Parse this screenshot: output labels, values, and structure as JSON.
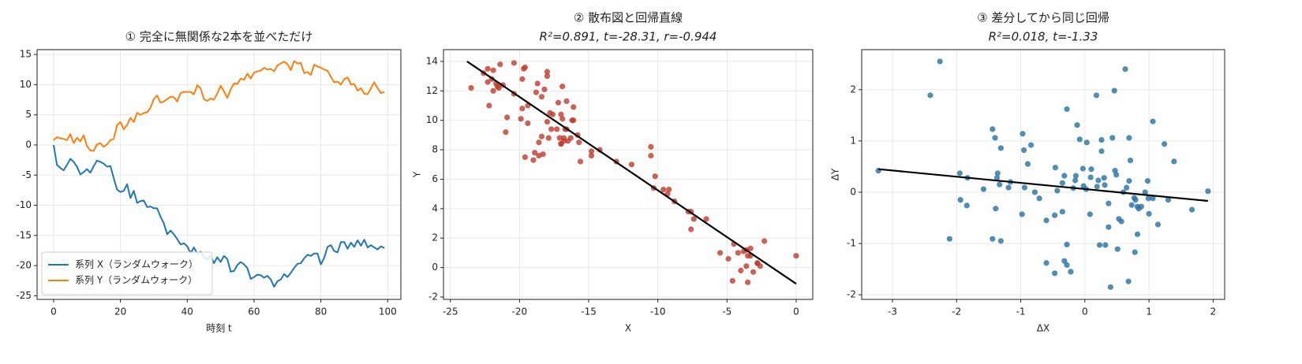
{
  "chart_data": [
    {
      "type": "line",
      "title": "① 完全に無関係な2本を並べただけ",
      "xlabel": "時刻 t",
      "x": [
        0,
        1,
        2,
        3,
        4,
        5,
        6,
        7,
        8,
        9,
        10,
        11,
        12,
        13,
        14,
        15,
        16,
        17,
        18,
        19,
        20,
        21,
        22,
        23,
        24,
        25,
        26,
        27,
        28,
        29,
        30,
        31,
        32,
        33,
        34,
        35,
        36,
        37,
        38,
        39,
        40,
        41,
        42,
        43,
        44,
        45,
        46,
        47,
        48,
        49,
        50,
        51,
        52,
        53,
        54,
        55,
        56,
        57,
        58,
        59,
        60,
        61,
        62,
        63,
        64,
        65,
        66,
        67,
        68,
        69,
        70,
        71,
        72,
        73,
        74,
        75,
        76,
        77,
        78,
        79,
        80,
        81,
        82,
        83,
        84,
        85,
        86,
        87,
        88,
        89,
        90,
        91,
        92,
        93,
        94,
        95,
        96,
        97,
        98,
        99
      ],
      "series": [
        {
          "name": "系列 X（ランダムウォーク）",
          "color": "#1f77b4",
          "values": [
            0,
            -3.3,
            -3.8,
            -4.2,
            -3.3,
            -2.3,
            -2.8,
            -3.6,
            -4.9,
            -4.5,
            -4.0,
            -4.6,
            -3.5,
            -2.6,
            -2.8,
            -3.1,
            -3.6,
            -3.5,
            -5.5,
            -7.4,
            -7.8,
            -7.6,
            -6.5,
            -8.8,
            -7.6,
            -9.6,
            -9.3,
            -9.2,
            -10.3,
            -10.2,
            -10.5,
            -10.5,
            -11.9,
            -13.0,
            -14.8,
            -14.2,
            -14.8,
            -15.6,
            -16.5,
            -16.3,
            -16.8,
            -17.9,
            -17.0,
            -18.0,
            -17.7,
            -18.6,
            -19.0,
            -18.3,
            -19.6,
            -18.6,
            -19.4,
            -18.4,
            -18.9,
            -21.0,
            -20.9,
            -19.9,
            -19.4,
            -19.8,
            -20.4,
            -22.2,
            -21.9,
            -21.5,
            -21.6,
            -22.0,
            -21.7,
            -22.3,
            -23.5,
            -22.6,
            -22.3,
            -21.4,
            -21.9,
            -21.2,
            -20.4,
            -19.7,
            -19.6,
            -18.8,
            -18.2,
            -18.4,
            -18.0,
            -18.0,
            -19.8,
            -18.7,
            -16.9,
            -16.6,
            -17.6,
            -17.8,
            -16.1,
            -16.1,
            -17.2,
            -16.2,
            -16.9,
            -15.8,
            -16.7,
            -15.7,
            -17.0,
            -16.6,
            -17.0,
            -17.3,
            -16.8,
            -17.1
          ]
        },
        {
          "name": "系列 Y（ランダムウォーク）",
          "color": "#ff7f0e",
          "values": [
            0.8,
            1.3,
            1.1,
            1.0,
            0.8,
            1.8,
            0.3,
            1.2,
            0.6,
            1.6,
            -0.2,
            -0.9,
            -1.0,
            0.1,
            0.3,
            -0.3,
            0.1,
            0.8,
            1.0,
            3.3,
            3.8,
            2.6,
            3.3,
            4.5,
            3.8,
            5.3,
            5.0,
            5.3,
            5.4,
            6.2,
            7.6,
            8.2,
            7.0,
            7.2,
            7.6,
            8.0,
            7.9,
            7.2,
            8.6,
            8.8,
            8.8,
            8.8,
            8.4,
            9.9,
            9.4,
            7.6,
            7.3,
            7.7,
            7.5,
            8.5,
            9.8,
            8.9,
            7.8,
            9.2,
            10.2,
            10.1,
            11.0,
            10.8,
            11.8,
            11.0,
            12.0,
            12.2,
            12.3,
            12.8,
            12.5,
            12.6,
            12.2,
            13.2,
            13.5,
            13.8,
            13.4,
            12.4,
            13.9,
            13.5,
            13.6,
            11.9,
            12.1,
            11.6,
            13.3,
            13.0,
            12.8,
            12.5,
            12.3,
            11.3,
            10.4,
            10.5,
            10.0,
            10.9,
            11.2,
            10.0,
            10.1,
            9.0,
            9.4,
            8.5,
            8.4,
            9.4,
            10.4,
            9.4,
            8.6,
            8.8
          ]
        }
      ],
      "xlim": [
        -4.95,
        103.95
      ],
      "ylim": [
        -25.6,
        15.8
      ],
      "xticks": [
        0,
        20,
        40,
        60,
        80,
        100
      ],
      "yticks": [
        -25,
        -20,
        -15,
        -10,
        -5,
        0,
        5,
        10,
        15
      ],
      "grid": true,
      "legend": "lower left"
    },
    {
      "type": "scatter",
      "title": "② 散布図と回帰直線",
      "subtitle": "R²=0.891, t=-28.31, r=-0.944",
      "xlabel": "X",
      "ylabel": "Y",
      "color": "#c0392b",
      "x": [
        0,
        -3.3,
        -3.8,
        -4.2,
        -3.3,
        -2.3,
        -2.8,
        -3.6,
        -4.9,
        -4.5,
        -4.0,
        -4.6,
        -3.5,
        -2.6,
        -2.8,
        -3.1,
        -3.6,
        -3.5,
        -5.5,
        -7.4,
        -7.8,
        -7.6,
        -6.5,
        -8.8,
        -7.6,
        -9.6,
        -9.3,
        -9.2,
        -10.3,
        -10.2,
        -10.5,
        -10.5,
        -11.9,
        -13.0,
        -14.8,
        -14.2,
        -14.8,
        -15.6,
        -16.5,
        -16.3,
        -16.8,
        -17.9,
        -17.0,
        -18.0,
        -17.7,
        -18.6,
        -19.0,
        -18.3,
        -19.6,
        -18.6,
        -19.4,
        -18.4,
        -18.9,
        -21.0,
        -20.9,
        -19.9,
        -19.4,
        -19.8,
        -20.4,
        -22.2,
        -21.9,
        -21.5,
        -21.6,
        -22.0,
        -21.7,
        -22.3,
        -23.5,
        -22.6,
        -22.3,
        -21.4,
        -21.9,
        -21.2,
        -20.4,
        -19.7,
        -19.6,
        -18.8,
        -18.2,
        -18.4,
        -18.0,
        -18.0,
        -19.8,
        -18.7,
        -16.9,
        -16.6,
        -17.6,
        -17.8,
        -16.1,
        -16.1,
        -17.2,
        -16.2,
        -16.9,
        -15.8,
        -16.7,
        -15.7,
        -17.0,
        -16.6,
        -17.0,
        -17.3,
        -16.8,
        -17.1
      ],
      "values": [
        0.8,
        1.3,
        1.1,
        1.0,
        0.8,
        1.8,
        0.3,
        1.2,
        0.6,
        1.6,
        -0.2,
        -0.9,
        -1.0,
        0.1,
        0.3,
        -0.3,
        0.1,
        0.8,
        1.0,
        3.3,
        3.8,
        2.6,
        3.3,
        4.5,
        3.8,
        5.3,
        5.0,
        5.3,
        5.4,
        6.2,
        7.6,
        8.2,
        7.0,
        7.2,
        7.6,
        8.0,
        7.9,
        7.2,
        8.6,
        8.8,
        8.8,
        8.8,
        8.4,
        9.9,
        9.4,
        7.6,
        7.3,
        7.7,
        7.5,
        8.5,
        9.8,
        8.9,
        7.8,
        9.2,
        10.2,
        10.1,
        11.0,
        10.8,
        11.8,
        11.0,
        12.0,
        12.2,
        12.3,
        12.8,
        12.5,
        12.6,
        12.2,
        13.2,
        13.5,
        13.8,
        13.4,
        12.4,
        13.9,
        13.5,
        13.6,
        11.9,
        12.1,
        11.6,
        13.3,
        13.0,
        12.8,
        12.5,
        12.3,
        11.3,
        10.4,
        10.5,
        10.0,
        10.9,
        11.2,
        10.0,
        10.1,
        9.0,
        9.4,
        8.5,
        8.4,
        9.4,
        10.4,
        9.4,
        8.6,
        8.8
      ],
      "fit": {
        "x": [
          -23.8,
          0
        ],
        "values": [
          14.0,
          -1.1
        ],
        "color": "#000000"
      },
      "xlim": [
        -25.5,
        1.2
      ],
      "ylim": [
        -2.16,
        14.8
      ],
      "xticks": [
        -25,
        -20,
        -15,
        -10,
        -5,
        0
      ],
      "yticks": [
        -2,
        0,
        2,
        4,
        6,
        8,
        10,
        12,
        14
      ],
      "grid": true
    },
    {
      "type": "scatter",
      "title": "③ 差分してから同じ回帰",
      "subtitle": "R²=0.018, t=-1.33",
      "xlabel": "ΔX",
      "ylabel": "ΔY",
      "color": "#2471a3",
      "x": [
        -3.22,
        -2.26,
        -2.41,
        -2.11,
        -1.95,
        -1.94,
        -1.84,
        -1.83,
        -1.58,
        -1.44,
        -1.4,
        -1.44,
        -1.39,
        -1.37,
        -1.36,
        -1.33,
        -1.31,
        -1.31,
        -1.19,
        -1.16,
        -0.97,
        -0.95,
        -0.94,
        -0.98,
        -0.89,
        -0.84,
        -0.78,
        -0.71,
        -0.6,
        -0.47,
        -0.46,
        -0.43,
        -0.6,
        -0.47,
        -0.35,
        -0.32,
        -0.35,
        -0.28,
        -0.28,
        -0.28,
        -0.32,
        -0.22,
        -0.18,
        -0.14,
        -0.15,
        -0.12,
        -0.08,
        -0.03,
        -0.02,
        0.02,
        0.03,
        0.08,
        0.09,
        0.1,
        0.19,
        0.21,
        0.18,
        0.23,
        0.26,
        0.26,
        0.3,
        0.31,
        0.32,
        0.37,
        0.37,
        0.4,
        0.43,
        0.46,
        0.47,
        0.49,
        0.51,
        0.53,
        0.57,
        0.6,
        0.63,
        0.65,
        0.68,
        0.69,
        0.71,
        0.69,
        0.73,
        0.77,
        0.78,
        0.79,
        0.82,
        0.84,
        0.82,
        0.88,
        0.94,
        0.98,
        0.99,
        1.06,
        1.06,
        1.0,
        1.14,
        1.24,
        1.3,
        1.39,
        1.67,
        1.92
      ],
      "values": [
        0.42,
        2.55,
        1.89,
        -0.91,
        0.37,
        -0.15,
        -0.26,
        0.28,
        0.06,
        1.23,
        1.06,
        -0.91,
        -0.32,
        0.28,
        0.37,
        0.15,
        0.86,
        -0.95,
        0.09,
        0.2,
        1.14,
        0.82,
        0.09,
        -0.43,
        0.55,
        0.92,
        0.0,
        -0.12,
        -0.55,
        -0.45,
        0.48,
        0.03,
        -1.38,
        -1.58,
        0.18,
        0.32,
        -0.38,
        1.62,
        -1.02,
        -1.42,
        -1.34,
        -1.55,
        0.08,
        0.32,
        0.23,
        1.31,
        1.03,
        0.46,
        0.12,
        0.06,
        0.97,
        -0.43,
        0.29,
        0.45,
        0.11,
        0.23,
        1.89,
        -1.03,
        1.02,
        0.8,
        0.28,
        0.14,
        -1.03,
        -0.22,
        -0.68,
        -1.85,
        1.06,
        1.98,
        0.42,
        0.34,
        -1.11,
        -0.52,
        -0.57,
        0.0,
        2.4,
        0.09,
        -1.74,
        1.06,
        0.62,
        0.22,
        -0.25,
        -0.11,
        -1.17,
        -0.15,
        -0.82,
        -0.32,
        -0.28,
        -0.28,
        0.0,
        0.22,
        -0.12,
        -0.12,
        1.38,
        -0.42,
        -0.63,
        0.94,
        -0.15,
        0.6,
        -0.34,
        0.02
      ],
      "fit": {
        "x": [
          -3.22,
          1.92
        ],
        "values": [
          0.45,
          -0.17
        ],
        "color": "#000000"
      },
      "xlim": [
        -3.48,
        2.18
      ],
      "ylim": [
        -2.09,
        2.78
      ],
      "xticks": [
        -3,
        -2,
        -1,
        0,
        1,
        2
      ],
      "yticks": [
        -2,
        -1,
        0,
        1,
        2
      ],
      "grid": true
    }
  ]
}
